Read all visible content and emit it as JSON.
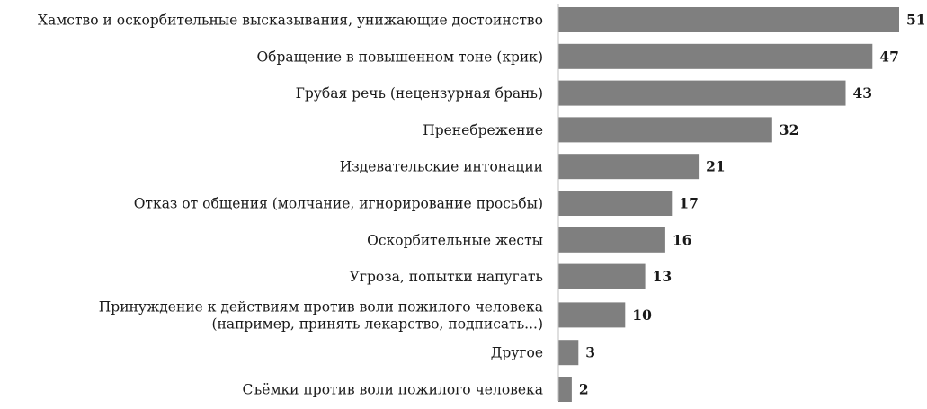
{
  "chart_data": {
    "type": "bar",
    "orientation": "horizontal",
    "title": "",
    "xlabel": "",
    "ylabel": "",
    "xlim": [
      0,
      51
    ],
    "grid": false,
    "legend": "none",
    "bar_color": "#7f7f7f",
    "categories": [
      [
        "Хамство и оскорбительные высказывания, унижающие достоинство"
      ],
      [
        "Обращение в повышенном тоне (крик)"
      ],
      [
        "Грубая речь (нецензурная брань)"
      ],
      [
        "Пренебрежение"
      ],
      [
        "Издевательские интонации"
      ],
      [
        "Отказ от общения (молчание, игнорирование просьбы)"
      ],
      [
        "Оскорбительные жесты"
      ],
      [
        "Угроза, попытки напугать"
      ],
      [
        "Принуждение к действиям против воли пожилого человека",
        "(например, принять лекарство, подписать...)"
      ],
      [
        "Другое"
      ],
      [
        "Съёмки против воли пожилого человека"
      ]
    ],
    "values": [
      51,
      47,
      43,
      32,
      21,
      17,
      16,
      13,
      10,
      3,
      2
    ]
  }
}
